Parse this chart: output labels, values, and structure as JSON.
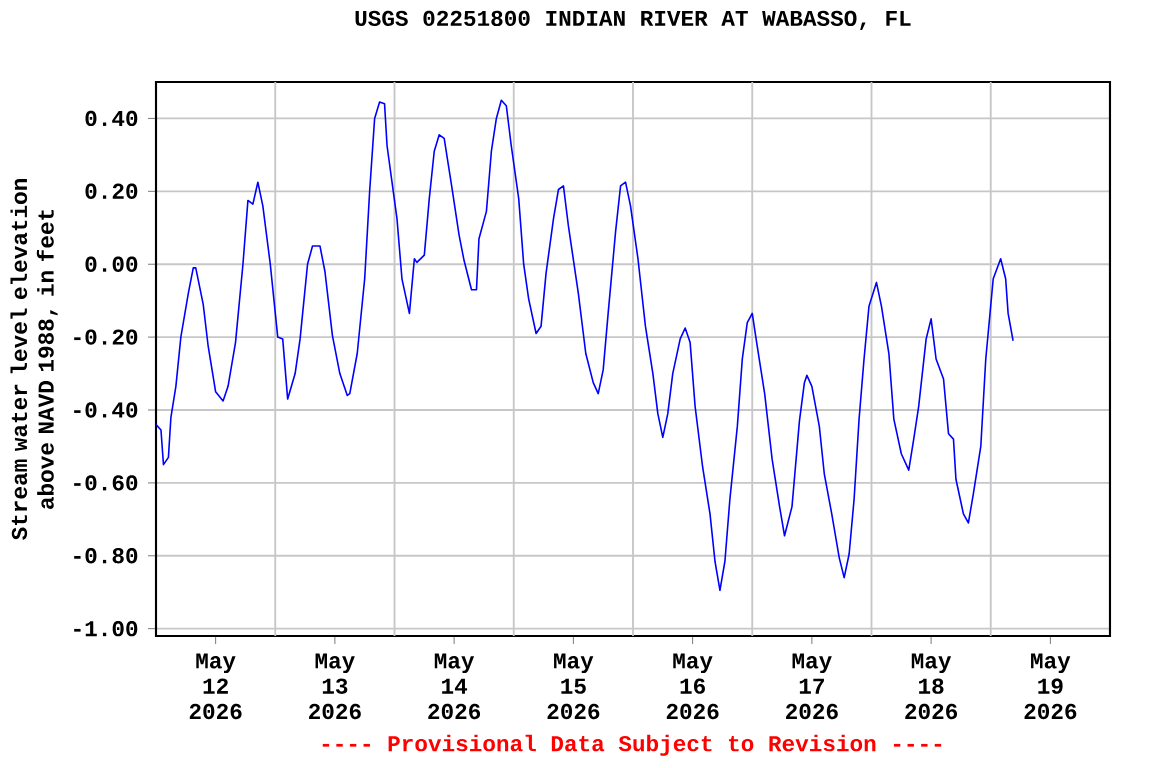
{
  "chart_data": {
    "type": "line",
    "title": "USGS 02251800 INDIAN RIVER AT WABASSO, FL",
    "ylabel": "Stream water level elevation above NAVD 1988, in feet",
    "annotations": [
      "---- Provisional Data Subject to Revision ----"
    ],
    "grid": true,
    "xlim": [
      "2026-05-12T00:00",
      "2026-05-20T00:00"
    ],
    "xticks": [
      {
        "value": "2026-05-12T12:00",
        "label": "May 12 2026"
      },
      {
        "value": "2026-05-13T00:00",
        "label": null
      },
      {
        "value": "2026-05-13T12:00",
        "label": "May 13 2026"
      },
      {
        "value": "2026-05-14T00:00",
        "label": null
      },
      {
        "value": "2026-05-14T12:00",
        "label": "May 14 2026"
      },
      {
        "value": "2026-05-15T00:00",
        "label": null
      },
      {
        "value": "2026-05-15T12:00",
        "label": "May 15 2026"
      },
      {
        "value": "2026-05-16T00:00",
        "label": null
      },
      {
        "value": "2026-05-16T12:00",
        "label": "May 16 2026"
      },
      {
        "value": "2026-05-17T00:00",
        "label": null
      },
      {
        "value": "2026-05-17T12:00",
        "label": "May 17 2026"
      },
      {
        "value": "2026-05-18T00:00",
        "label": null
      },
      {
        "value": "2026-05-18T12:00",
        "label": "May 18 2026"
      },
      {
        "value": "2026-05-19T00:00",
        "label": null
      },
      {
        "value": "2026-05-19T12:00",
        "label": "May 19 2026"
      }
    ],
    "ylim": [
      -1.02,
      0.5
    ],
    "yticks": [
      {
        "value": -1.0,
        "label": "-1.00"
      },
      {
        "value": -0.8,
        "label": "-0.80"
      },
      {
        "value": -0.6,
        "label": "-0.60"
      },
      {
        "value": -0.4,
        "label": "-0.40"
      },
      {
        "value": -0.2,
        "label": "-0.20"
      },
      {
        "value": 0.0,
        "label": "0.00"
      },
      {
        "value": 0.2,
        "label": "0.20"
      },
      {
        "value": 0.4,
        "label": "0.40"
      }
    ],
    "marker": "none",
    "line_style": "solid",
    "series": [
      {
        "color": "#0000ff",
        "x": [
          "2026-05-12T00:00",
          "2026-05-12T01:00",
          "2026-05-12T01:30",
          "2026-05-12T02:30",
          "2026-05-12T03:00",
          "2026-05-12T04:00",
          "2026-05-12T05:00",
          "2026-05-12T06:30",
          "2026-05-12T07:30",
          "2026-05-12T08:00",
          "2026-05-12T09:30",
          "2026-05-12T10:30",
          "2026-05-12T12:00",
          "2026-05-12T13:30",
          "2026-05-12T14:30",
          "2026-05-12T16:00",
          "2026-05-12T17:30",
          "2026-05-12T18:30",
          "2026-05-12T19:30",
          "2026-05-12T20:30",
          "2026-05-12T21:30",
          "2026-05-12T23:00",
          "2026-05-13T00:30",
          "2026-05-13T01:30",
          "2026-05-13T02:30",
          "2026-05-13T04:00",
          "2026-05-13T05:00",
          "2026-05-13T06:30",
          "2026-05-13T07:30",
          "2026-05-13T09:00",
          "2026-05-13T10:00",
          "2026-05-13T11:30",
          "2026-05-13T13:00",
          "2026-05-13T14:30",
          "2026-05-13T15:00",
          "2026-05-13T16:30",
          "2026-05-13T18:00",
          "2026-05-13T19:00",
          "2026-05-13T20:00",
          "2026-05-13T21:00",
          "2026-05-13T22:00",
          "2026-05-13T22:30",
          "2026-05-14T00:30",
          "2026-05-14T01:30",
          "2026-05-14T03:00",
          "2026-05-14T04:00",
          "2026-05-14T04:30",
          "2026-05-14T06:00",
          "2026-05-14T07:00",
          "2026-05-14T08:00",
          "2026-05-14T09:00",
          "2026-05-14T10:00",
          "2026-05-14T11:30",
          "2026-05-14T13:00",
          "2026-05-14T14:00",
          "2026-05-14T15:30",
          "2026-05-14T16:30",
          "2026-05-14T17:00",
          "2026-05-14T18:30",
          "2026-05-14T19:30",
          "2026-05-14T20:30",
          "2026-05-14T21:30",
          "2026-05-14T22:30",
          "2026-05-14T23:30",
          "2026-05-15T01:00",
          "2026-05-15T02:00",
          "2026-05-15T03:00",
          "2026-05-15T04:30",
          "2026-05-15T05:30",
          "2026-05-15T06:30",
          "2026-05-15T08:00",
          "2026-05-15T09:00",
          "2026-05-15T10:00",
          "2026-05-15T11:00",
          "2026-05-15T13:00",
          "2026-05-15T14:30",
          "2026-05-15T16:00",
          "2026-05-15T17:00",
          "2026-05-15T18:00",
          "2026-05-15T19:00",
          "2026-05-15T20:30",
          "2026-05-15T21:30",
          "2026-05-15T22:30",
          "2026-05-15T23:30",
          "2026-05-16T01:00",
          "2026-05-16T02:30",
          "2026-05-16T04:00",
          "2026-05-16T05:00",
          "2026-05-16T06:00",
          "2026-05-16T07:00",
          "2026-05-16T08:00",
          "2026-05-16T09:30",
          "2026-05-16T10:30",
          "2026-05-16T11:30",
          "2026-05-16T12:30",
          "2026-05-16T14:00",
          "2026-05-16T15:30",
          "2026-05-16T16:30",
          "2026-05-16T17:30",
          "2026-05-16T18:30",
          "2026-05-16T19:30",
          "2026-05-16T21:00",
          "2026-05-16T22:00",
          "2026-05-16T23:00",
          "2026-05-17T00:00",
          "2026-05-17T01:00",
          "2026-05-17T02:30",
          "2026-05-17T04:00",
          "2026-05-17T05:30",
          "2026-05-17T06:30",
          "2026-05-17T08:00",
          "2026-05-17T09:30",
          "2026-05-17T10:30",
          "2026-05-17T11:00",
          "2026-05-17T12:00",
          "2026-05-17T13:30",
          "2026-05-17T14:30",
          "2026-05-17T16:00",
          "2026-05-17T17:30",
          "2026-05-17T18:30",
          "2026-05-17T19:30",
          "2026-05-17T20:30",
          "2026-05-17T21:30",
          "2026-05-17T22:30",
          "2026-05-17T23:30",
          "2026-05-18T01:00",
          "2026-05-18T02:00",
          "2026-05-18T03:30",
          "2026-05-18T04:30",
          "2026-05-18T06:00",
          "2026-05-18T07:30",
          "2026-05-18T08:30",
          "2026-05-18T09:30",
          "2026-05-18T11:00",
          "2026-05-18T12:00",
          "2026-05-18T13:00",
          "2026-05-18T14:30",
          "2026-05-18T15:30",
          "2026-05-18T16:30",
          "2026-05-18T17:00",
          "2026-05-18T18:30",
          "2026-05-18T19:30",
          "2026-05-18T20:30",
          "2026-05-18T22:00",
          "2026-05-18T23:00",
          "2026-05-19T00:30",
          "2026-05-19T02:00",
          "2026-05-19T03:00",
          "2026-05-19T03:30",
          "2026-05-19T04:30"
        ],
        "values": [
          -0.44,
          -0.455,
          -0.55,
          -0.53,
          -0.42,
          -0.335,
          -0.2,
          -0.08,
          -0.01,
          -0.01,
          -0.11,
          -0.225,
          -0.35,
          -0.375,
          -0.335,
          -0.215,
          0.0,
          0.175,
          0.165,
          0.225,
          0.16,
          0.0,
          -0.2,
          -0.205,
          -0.37,
          -0.3,
          -0.205,
          0.0,
          0.05,
          0.05,
          -0.02,
          -0.195,
          -0.3,
          -0.36,
          -0.355,
          -0.245,
          -0.04,
          0.2,
          0.4,
          0.445,
          0.44,
          0.325,
          0.125,
          -0.04,
          -0.135,
          0.015,
          0.005,
          0.025,
          0.18,
          0.31,
          0.355,
          0.345,
          0.215,
          0.08,
          0.01,
          -0.07,
          -0.07,
          0.07,
          0.145,
          0.31,
          0.4,
          0.45,
          0.435,
          0.325,
          0.18,
          0.0,
          -0.095,
          -0.19,
          -0.17,
          -0.025,
          0.125,
          0.205,
          0.215,
          0.105,
          -0.08,
          -0.245,
          -0.325,
          -0.355,
          -0.29,
          -0.135,
          0.09,
          0.215,
          0.225,
          0.16,
          0.015,
          -0.17,
          -0.3,
          -0.41,
          -0.475,
          -0.41,
          -0.3,
          -0.205,
          -0.175,
          -0.215,
          -0.39,
          -0.555,
          -0.685,
          -0.815,
          -0.895,
          -0.815,
          -0.645,
          -0.445,
          -0.26,
          -0.16,
          -0.135,
          -0.225,
          -0.355,
          -0.535,
          -0.665,
          -0.745,
          -0.665,
          -0.43,
          -0.325,
          -0.305,
          -0.335,
          -0.445,
          -0.575,
          -0.685,
          -0.805,
          -0.86,
          -0.795,
          -0.645,
          -0.425,
          -0.26,
          -0.115,
          -0.05,
          -0.115,
          -0.245,
          -0.425,
          -0.52,
          -0.565,
          -0.48,
          -0.39,
          -0.205,
          -0.15,
          -0.26,
          -0.315,
          -0.465,
          -0.48,
          -0.59,
          -0.685,
          -0.71,
          -0.63,
          -0.5,
          -0.26,
          -0.04,
          0.015,
          -0.04,
          -0.135,
          -0.21
        ]
      }
    ]
  }
}
